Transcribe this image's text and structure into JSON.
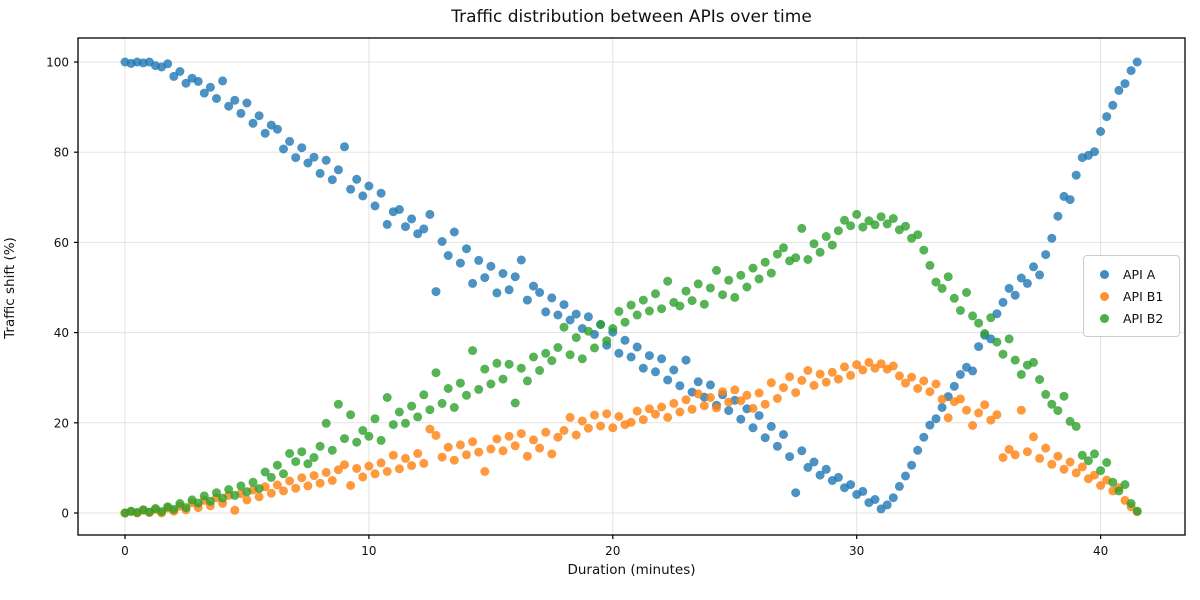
{
  "title": "Traffic distribution between APIs over time",
  "chart_data": {
    "type": "scatter",
    "title": "Traffic distribution between APIs over time",
    "xlabel": "Duration (minutes)",
    "ylabel": "Traffic shift (%)",
    "xlim": [
      -2.1,
      43.6
    ],
    "ylim": [
      -5,
      105
    ],
    "xticks": [
      0,
      10,
      20,
      30,
      40
    ],
    "yticks": [
      0,
      20,
      40,
      60,
      80,
      100
    ],
    "grid": true,
    "grid_color": "#e3e3e3",
    "legend_position": "center-right",
    "marker_alpha": 0.8,
    "marker_radius_px": 4.5,
    "x": [
      0,
      0.25,
      0.5,
      0.75,
      1,
      1.25,
      1.5,
      1.75,
      2,
      2.25,
      2.5,
      2.75,
      3,
      3.25,
      3.5,
      3.75,
      4,
      4.25,
      4.5,
      4.75,
      5,
      5.25,
      5.5,
      5.75,
      6,
      6.25,
      6.5,
      6.75,
      7,
      7.25,
      7.5,
      7.75,
      8,
      8.25,
      8.5,
      8.75,
      9,
      9.25,
      9.5,
      9.75,
      10,
      10.25,
      10.5,
      10.75,
      11,
      11.25,
      11.5,
      11.75,
      12,
      12.25,
      12.5,
      12.75,
      13,
      13.25,
      13.5,
      13.75,
      14,
      14.25,
      14.5,
      14.75,
      15,
      15.25,
      15.5,
      15.75,
      16,
      16.25,
      16.5,
      16.75,
      17,
      17.25,
      17.5,
      17.75,
      18,
      18.25,
      18.5,
      18.75,
      19,
      19.25,
      19.5,
      19.75,
      20,
      20.25,
      20.5,
      20.75,
      21,
      21.25,
      21.5,
      21.75,
      22,
      22.25,
      22.5,
      22.75,
      23,
      23.25,
      23.5,
      23.75,
      24,
      24.25,
      24.5,
      24.75,
      25,
      25.25,
      25.5,
      25.75,
      26,
      26.25,
      26.5,
      26.75,
      27,
      27.25,
      27.5,
      27.75,
      28,
      28.25,
      28.5,
      28.75,
      29,
      29.25,
      29.5,
      29.75,
      30,
      30.25,
      30.5,
      30.75,
      31,
      31.25,
      31.5,
      31.75,
      32,
      32.25,
      32.5,
      32.75,
      33,
      33.25,
      33.5,
      33.75,
      34,
      34.25,
      34.5,
      34.75,
      35,
      35.25,
      35.5,
      35.75,
      36,
      36.25,
      36.5,
      36.75,
      37,
      37.25,
      37.5,
      37.75,
      38,
      38.25,
      38.5,
      38.75,
      39,
      39.25,
      39.5,
      39.75,
      40,
      40.25,
      40.5,
      40.75,
      41,
      41.25,
      41.5
    ],
    "series": [
      {
        "name": "API A",
        "color": "#1f77b4",
        "values": [
          100,
          99.7,
          100,
          99.8,
          100,
          99.2,
          98.9,
          99.6,
          96.8,
          97.9,
          95.3,
          96.4,
          95.7,
          93.1,
          94.4,
          91.9,
          95.8,
          90.2,
          91.5,
          88.6,
          90.9,
          86.4,
          88.1,
          84.2,
          86.0,
          85.1,
          80.7,
          82.4,
          78.8,
          81.0,
          77.6,
          78.9,
          75.3,
          78.2,
          73.9,
          76.1,
          81.2,
          71.8,
          74.0,
          70.3,
          72.5,
          68.1,
          70.9,
          64.0,
          66.8,
          67.3,
          63.5,
          65.2,
          61.9,
          63.0,
          66.2,
          49.1,
          60.2,
          57.1,
          62.3,
          55.4,
          58.6,
          50.9,
          56.0,
          52.2,
          54.7,
          48.8,
          53.1,
          49.5,
          52.4,
          56.1,
          47.2,
          50.3,
          48.9,
          44.6,
          47.7,
          43.9,
          46.2,
          42.8,
          44.1,
          40.9,
          43.5,
          39.6,
          41.8,
          37.2,
          40.1,
          35.4,
          38.3,
          34.6,
          36.8,
          32.1,
          34.9,
          31.3,
          34.2,
          29.5,
          31.7,
          28.2,
          33.9,
          26.8,
          29.1,
          25.7,
          28.4,
          23.9,
          26.2,
          22.7,
          25.0,
          20.8,
          23.1,
          18.9,
          21.6,
          16.7,
          19.2,
          14.8,
          17.4,
          12.5,
          4.5,
          13.8,
          10.1,
          11.3,
          8.4,
          9.7,
          7.2,
          7.9,
          5.6,
          6.3,
          4.1,
          4.8,
          2.3,
          3.0,
          0.9,
          1.8,
          3.4,
          5.9,
          8.2,
          10.6,
          13.9,
          16.8,
          19.5,
          20.9,
          23.4,
          25.8,
          28.1,
          30.7,
          32.3,
          31.5,
          36.9,
          39.4,
          38.6,
          44.2,
          46.7,
          49.8,
          48.3,
          52.1,
          50.9,
          54.6,
          52.8,
          57.3,
          60.9,
          65.8,
          70.2,
          69.5,
          74.9,
          78.8,
          79.3,
          80.1,
          84.6,
          87.9,
          90.4,
          93.7,
          95.2,
          98.1,
          100
        ]
      },
      {
        "name": "API B1",
        "color": "#ff7f0e",
        "values": [
          0,
          0.3,
          0,
          0.6,
          0.1,
          0.8,
          0,
          1.1,
          0.4,
          1.5,
          0.7,
          2.3,
          1.2,
          2.8,
          1.6,
          3.4,
          2.1,
          3.9,
          0.6,
          4.3,
          2.9,
          5.1,
          3.6,
          5.8,
          4.4,
          6.2,
          4.9,
          7.1,
          5.5,
          7.8,
          6.0,
          8.3,
          6.6,
          9.0,
          7.2,
          9.6,
          10.7,
          6.1,
          9.9,
          8.0,
          10.4,
          8.7,
          11.1,
          9.2,
          12.8,
          9.8,
          12.1,
          10.5,
          13.2,
          11.0,
          18.6,
          17.2,
          12.4,
          14.6,
          11.7,
          15.1,
          12.9,
          15.8,
          13.5,
          9.2,
          14.2,
          16.4,
          13.8,
          17.0,
          14.9,
          17.6,
          12.6,
          16.2,
          14.4,
          17.9,
          13.1,
          16.8,
          18.3,
          21.2,
          17.3,
          20.4,
          18.8,
          21.7,
          19.3,
          22.0,
          18.9,
          21.4,
          19.6,
          20.1,
          22.6,
          20.7,
          23.1,
          21.9,
          23.5,
          21.2,
          24.3,
          22.4,
          25.1,
          23.0,
          26.4,
          23.8,
          25.6,
          23.3,
          26.9,
          24.6,
          27.3,
          24.9,
          26.1,
          23.2,
          26.6,
          24.1,
          28.9,
          25.4,
          27.8,
          30.2,
          26.7,
          29.4,
          31.6,
          28.3,
          30.8,
          29.0,
          31.2,
          29.7,
          32.4,
          30.5,
          32.9,
          31.7,
          33.4,
          32.1,
          33.1,
          31.9,
          32.6,
          30.4,
          28.8,
          30.1,
          27.6,
          29.3,
          26.9,
          28.6,
          25.2,
          21.1,
          24.7,
          25.3,
          22.8,
          19.4,
          22.2,
          24.0,
          20.6,
          21.8,
          12.3,
          14.1,
          12.9,
          22.8,
          13.6,
          16.9,
          12.1,
          14.4,
          10.8,
          12.6,
          9.7,
          11.3,
          8.9,
          10.2,
          7.6,
          8.4,
          6.1,
          7.3,
          4.9,
          5.6,
          2.8,
          1.4,
          0.3
        ]
      },
      {
        "name": "API B2",
        "color": "#2ca02c",
        "values": [
          0,
          0.4,
          0.1,
          0.7,
          0.2,
          1.0,
          0.3,
          1.4,
          0.8,
          2.1,
          1.2,
          2.9,
          2.2,
          3.8,
          2.6,
          4.5,
          3.3,
          5.2,
          3.9,
          6.0,
          4.7,
          6.8,
          5.4,
          9.1,
          7.9,
          10.6,
          8.7,
          13.2,
          11.4,
          13.6,
          10.9,
          12.3,
          14.8,
          19.9,
          13.9,
          24.1,
          16.5,
          21.8,
          15.7,
          18.3,
          17.0,
          20.9,
          16.1,
          25.6,
          19.6,
          22.4,
          19.9,
          23.7,
          21.3,
          26.2,
          22.9,
          31.1,
          24.3,
          27.6,
          23.4,
          28.8,
          26.1,
          36.0,
          27.4,
          31.9,
          28.6,
          33.2,
          29.7,
          33.0,
          24.4,
          32.1,
          29.3,
          34.6,
          31.6,
          35.4,
          33.8,
          36.7,
          41.2,
          35.1,
          38.9,
          34.2,
          40.3,
          36.6,
          41.8,
          38.2,
          40.9,
          44.7,
          42.3,
          46.1,
          43.9,
          47.2,
          44.8,
          48.6,
          45.3,
          51.4,
          46.7,
          45.9,
          49.2,
          47.1,
          50.8,
          46.3,
          49.9,
          53.8,
          48.4,
          51.6,
          47.8,
          52.7,
          50.1,
          54.3,
          51.9,
          55.6,
          53.2,
          57.4,
          58.8,
          55.9,
          56.6,
          63.1,
          56.2,
          59.7,
          57.8,
          61.3,
          59.4,
          62.6,
          64.9,
          63.7,
          66.2,
          63.4,
          64.8,
          63.9,
          65.7,
          64.1,
          65.3,
          62.8,
          63.6,
          60.9,
          61.7,
          58.3,
          54.9,
          51.2,
          49.8,
          52.4,
          47.6,
          44.9,
          48.9,
          43.7,
          42.1,
          39.8,
          43.3,
          37.9,
          35.2,
          38.6,
          33.9,
          30.7,
          32.8,
          33.4,
          29.6,
          26.3,
          24.1,
          22.7,
          25.9,
          20.3,
          19.2,
          12.8,
          11.6,
          13.1,
          9.4,
          11.2,
          6.8,
          4.9,
          6.3,
          2.1,
          0.4
        ]
      }
    ]
  }
}
